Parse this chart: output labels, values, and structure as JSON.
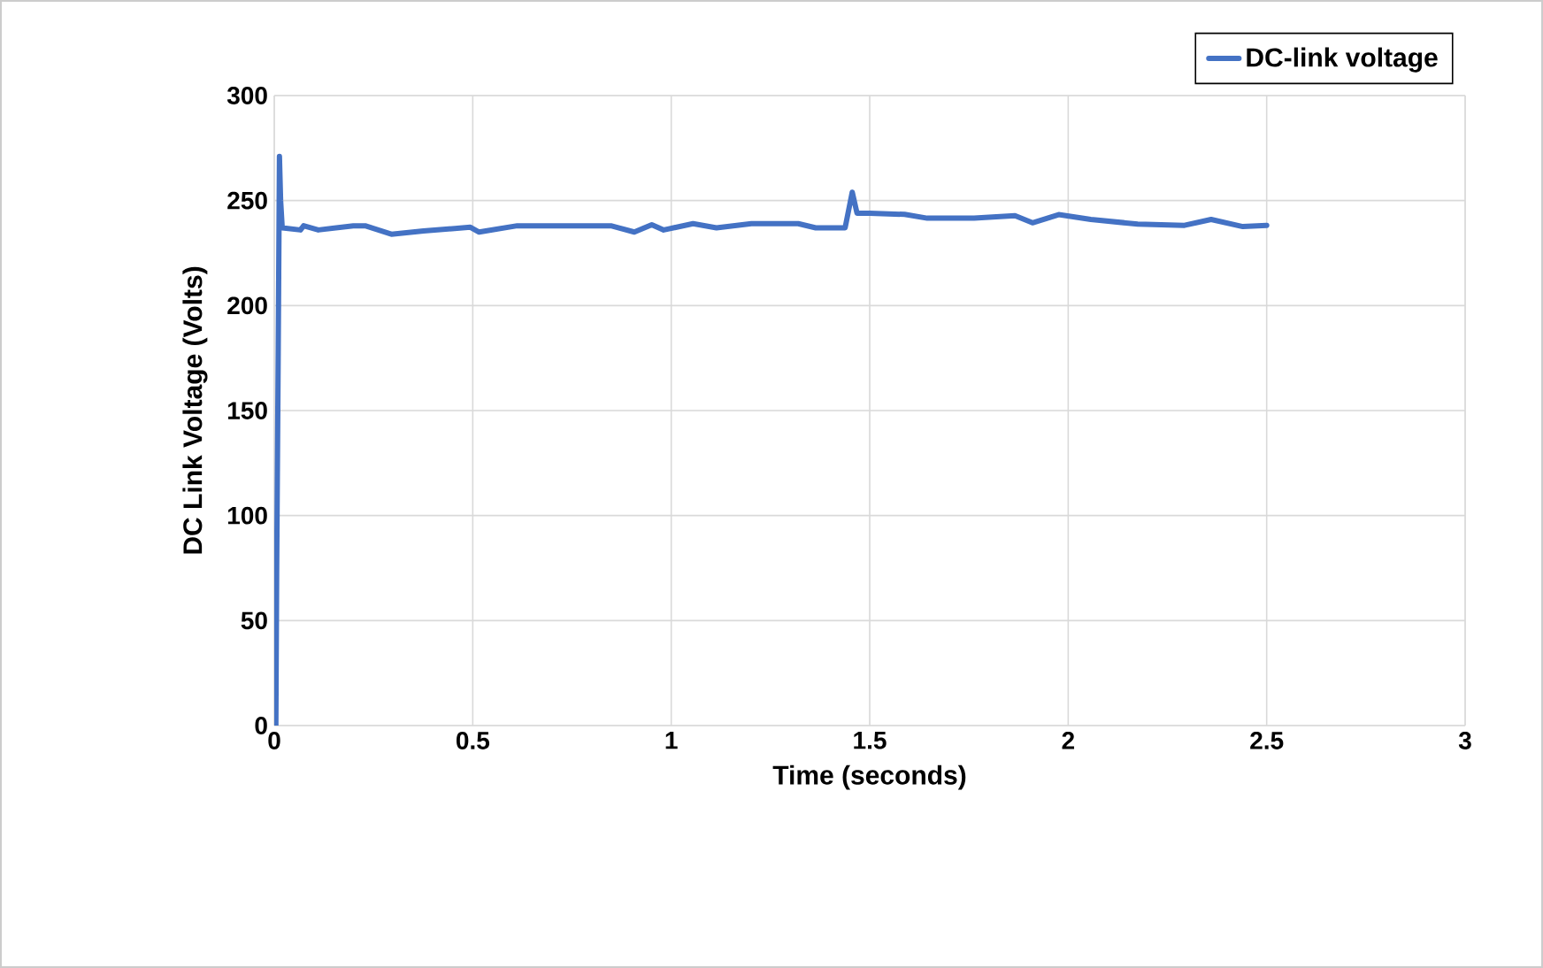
{
  "chart_data": {
    "type": "line",
    "xlabel": "Time (seconds)",
    "ylabel": "DC Link Voltage (Volts)",
    "xlim": [
      0,
      3
    ],
    "xticks": [
      0,
      0.5,
      1,
      1.5,
      2,
      2.5,
      3
    ],
    "ylim": [
      0,
      300
    ],
    "yticks": [
      0,
      50,
      100,
      150,
      200,
      250,
      300
    ],
    "grid": true,
    "legend": "top right",
    "series": [
      {
        "name": "DC-link voltage",
        "color": "#4472c4",
        "x": [
          0.004,
          0.006,
          0.01,
          0.013,
          0.016,
          0.02,
          0.066,
          0.074,
          0.111,
          0.199,
          0.229,
          0.295,
          0.376,
          0.494,
          0.516,
          0.612,
          0.7,
          0.848,
          0.907,
          0.951,
          0.981,
          1.055,
          1.114,
          1.202,
          1.32,
          1.364,
          1.438,
          1.456,
          1.468,
          1.5,
          1.588,
          1.645,
          1.763,
          1.866,
          1.91,
          1.976,
          2.057,
          2.175,
          2.293,
          2.36,
          2.44,
          2.5
        ],
        "values": [
          0,
          73,
          180,
          271,
          250,
          237,
          236,
          238,
          236,
          238,
          238,
          234,
          235.5,
          237.3,
          235,
          238,
          238,
          238,
          235,
          238.5,
          236,
          239,
          237,
          239,
          239,
          237,
          237,
          254,
          244,
          244,
          243.4,
          241.6,
          241.6,
          242.8,
          239.4,
          243.3,
          241,
          238.8,
          238.2,
          241,
          237.6,
          238.2
        ]
      }
    ]
  }
}
